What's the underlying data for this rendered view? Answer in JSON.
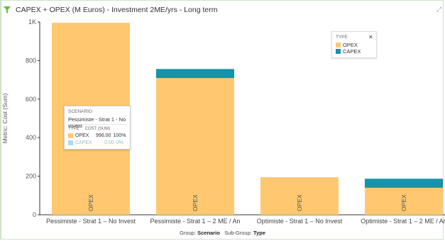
{
  "title": "CAPEX + OPEX (M Euros) - Investment 2ME/yrs - Long term",
  "colors": {
    "opex": "#ffc870",
    "capex": "#1593ab",
    "accent": "#6bbb3d"
  },
  "footer": {
    "group_label": "Group:",
    "group_value": "Scenario",
    "subgroup_label": "Sub-Group:",
    "subgroup_value": "Type"
  },
  "legend": {
    "header": "TYPE",
    "close": "×",
    "items": [
      "OPEX",
      "CAPEX"
    ]
  },
  "tooltip": {
    "header": "SCENARIO",
    "scenario": "Pessimiste - Strat 1 - No Invest",
    "col_type": "TYPE",
    "col_cost": "COST (SUM)",
    "rows": [
      {
        "type": "OPEX",
        "cost": "996.00",
        "pct": "100%"
      },
      {
        "type": "CAPEX",
        "cost": "0.00",
        "pct": "0%"
      }
    ]
  },
  "chart_data": {
    "type": "bar",
    "stacked": true,
    "categories": [
      "Pessimiste - Strat 1 – No Invest",
      "Pessimiste - Strat 1 – 2 ME / An",
      "Optimiste - Strat 1 – No Invest",
      "Optimiste - Strat 1 – 2 ME / An"
    ],
    "series": [
      {
        "name": "OPEX",
        "values": [
          996,
          709,
          195,
          140
        ]
      },
      {
        "name": "CAPEX",
        "values": [
          0,
          47,
          0,
          47
        ]
      }
    ],
    "bar_labels": [
      "OPEX",
      "OPEX",
      "OPEX",
      "OPEX"
    ],
    "ylabel": "Metric: Cost (Sum)",
    "ylim": [
      0,
      1000
    ],
    "yticks": [
      0,
      200,
      400,
      600,
      800,
      1000
    ],
    "ytick_labels": [
      "0",
      "200",
      "400",
      "600",
      "800",
      "1K"
    ],
    "grid": false,
    "legend_position": "top-right"
  }
}
